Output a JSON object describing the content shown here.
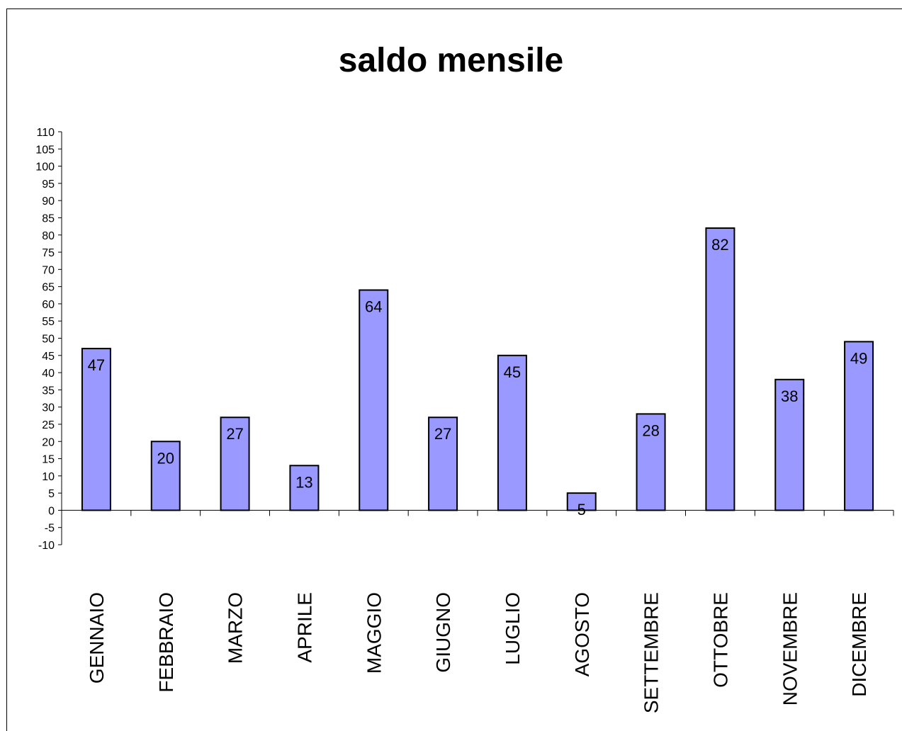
{
  "chart_data": {
    "type": "bar",
    "title": "saldo mensile",
    "xlabel": "",
    "ylabel": "",
    "categories": [
      "GENNAIO",
      "FEBBRAIO",
      "MARZO",
      "APRILE",
      "MAGGIO",
      "GIUGNO",
      "LUGLIO",
      "AGOSTO",
      "SETTEMBRE",
      "OTTOBRE",
      "NOVEMBRE",
      "DICEMBRE"
    ],
    "values": [
      47,
      20,
      27,
      13,
      64,
      27,
      45,
      5,
      28,
      82,
      38,
      49
    ],
    "ylim": [
      -10,
      110
    ],
    "ytick_step": 5,
    "grid": false,
    "legend": "none",
    "bar_color": "#9999FF",
    "bar_edge_color": "#000000"
  }
}
